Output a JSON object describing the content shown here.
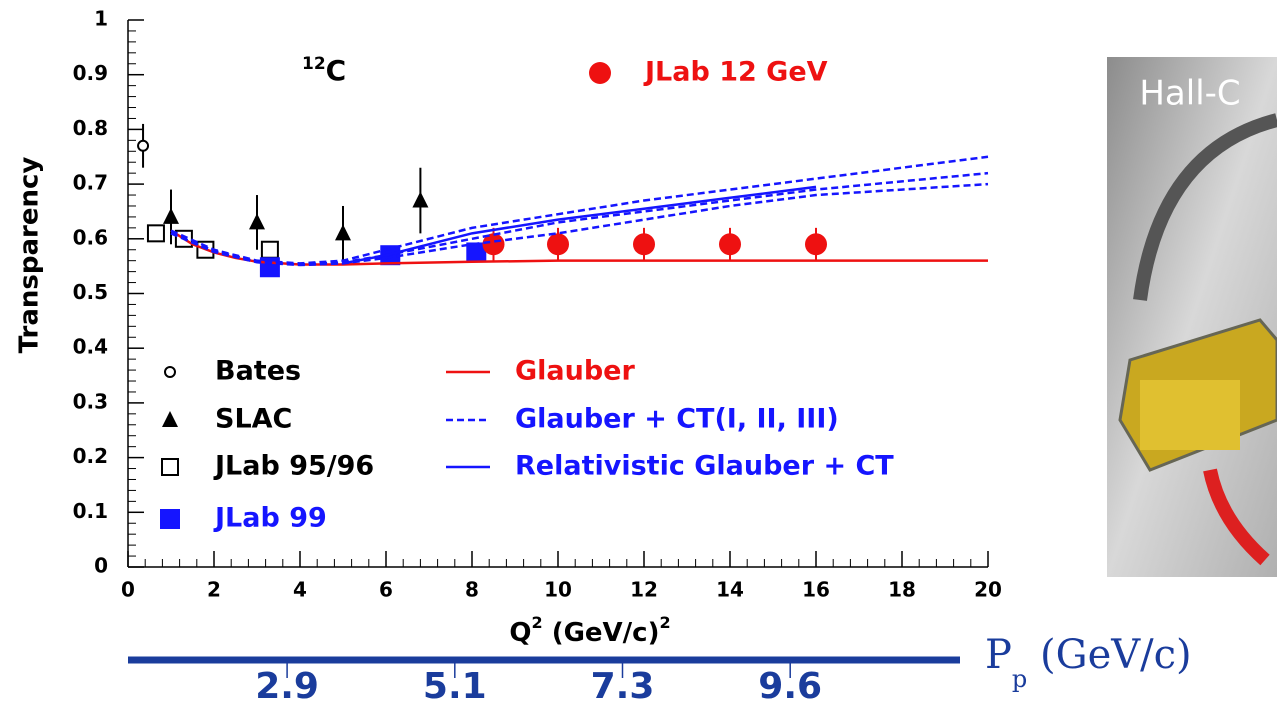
{
  "chart_data": {
    "type": "scatter",
    "annotation": {
      "sup": "12",
      "text": "C"
    },
    "xlabel": [
      "Q",
      "2",
      " (GeV/c)",
      "2"
    ],
    "ylabel": "Transparency",
    "xlim": [
      0,
      20
    ],
    "ylim": [
      0,
      1
    ],
    "xticks": [
      0,
      2,
      4,
      6,
      8,
      10,
      12,
      14,
      16,
      18,
      20
    ],
    "yticks": [
      0,
      0.1,
      0.2,
      0.3,
      0.4,
      0.5,
      0.6,
      0.7,
      0.8,
      0.9,
      1
    ],
    "series": [
      {
        "name": "Bates",
        "color": "#000000",
        "marker": "open-circle",
        "x": [
          0.35
        ],
        "values": [
          0.77
        ],
        "errors": [
          0.04
        ]
      },
      {
        "name": "SLAC",
        "color": "#000000",
        "marker": "triangle",
        "x": [
          1,
          3,
          5,
          6.8
        ],
        "values": [
          0.64,
          0.63,
          0.61,
          0.67
        ],
        "errors": [
          0.05,
          0.05,
          0.05,
          0.06
        ]
      },
      {
        "name": "JLab 95/96",
        "color": "#000000",
        "marker": "open-square",
        "x": [
          0.65,
          1.3,
          1.8,
          3.3
        ],
        "values": [
          0.61,
          0.6,
          0.58,
          0.58
        ]
      },
      {
        "name": "JLab 99",
        "color": "#1515ff",
        "marker": "square",
        "x": [
          3.3,
          6.1,
          8.1
        ],
        "values": [
          0.548,
          0.57,
          0.575
        ]
      },
      {
        "name": "JLab 12 GeV",
        "color": "#ee1111",
        "marker": "circle",
        "x": [
          8.5,
          10,
          12,
          14,
          16
        ],
        "values": [
          0.59,
          0.59,
          0.59,
          0.59,
          0.59
        ],
        "errors": [
          0.03,
          0.03,
          0.03,
          0.03,
          0.03
        ]
      },
      {
        "name": "Glauber",
        "color": "#ee1111",
        "line": "solid",
        "x": [
          1,
          1.5,
          2,
          2.5,
          3,
          4,
          5,
          6,
          8,
          10,
          20
        ],
        "values": [
          0.615,
          0.59,
          0.575,
          0.565,
          0.558,
          0.553,
          0.553,
          0.555,
          0.558,
          0.56,
          0.56
        ]
      },
      {
        "name": "Glauber + CT(I, II, III)",
        "color": "#1515ff",
        "line": "dashed",
        "x": [
          1,
          2,
          3,
          4,
          5,
          6,
          8,
          10,
          12,
          14,
          16,
          18,
          20
        ],
        "values": [
          [
            0.615,
            0.58,
            0.56,
            0.555,
            0.56,
            0.58,
            0.62,
            0.645,
            0.67,
            0.69,
            0.71,
            0.73,
            0.75
          ],
          [
            0.61,
            0.578,
            0.558,
            0.553,
            0.557,
            0.57,
            0.6,
            0.63,
            0.65,
            0.67,
            0.69,
            0.705,
            0.72
          ],
          [
            0.61,
            0.576,
            0.557,
            0.552,
            0.555,
            0.565,
            0.59,
            0.61,
            0.635,
            0.66,
            0.68,
            0.69,
            0.7
          ]
        ]
      },
      {
        "name": "Relativistic Glauber + CT",
        "color": "#1515ff",
        "line": "solid",
        "x": [
          5,
          6,
          8,
          10,
          12,
          14,
          16
        ],
        "values": [
          0.555,
          0.57,
          0.61,
          0.635,
          0.655,
          0.675,
          0.695
        ]
      }
    ],
    "x2ticks": [
      {
        "value": 3.7,
        "label": "2.9"
      },
      {
        "value": 7.6,
        "label": "5.1"
      },
      {
        "value": 11.5,
        "label": "7.3"
      },
      {
        "value": 15.4,
        "label": "9.6"
      }
    ],
    "x2label": [
      "P",
      "p",
      " (GeV/c)"
    ]
  },
  "image_label": "Hall-C"
}
